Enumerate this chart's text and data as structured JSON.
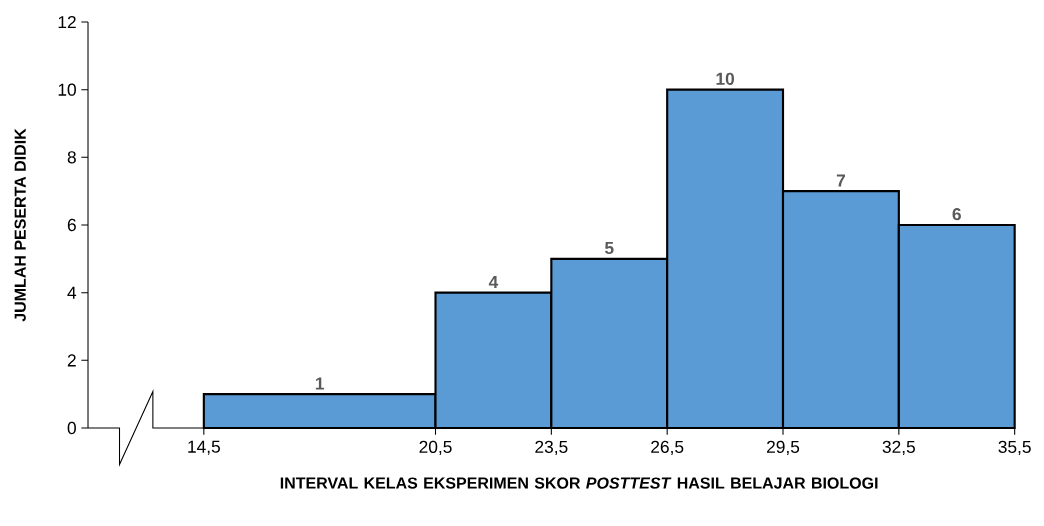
{
  "chart_data": {
    "type": "histogram",
    "xlabel": "INTERVAL KELAS EKSPERIMEN SKOR *POSTTEST* HASIL BELAJAR BIOLOGI",
    "ylabel": "JUMLAH PESERTA DIDIK",
    "bins": [
      14.5,
      20.5,
      23.5,
      26.5,
      29.5,
      32.5,
      35.5
    ],
    "values": [
      1,
      4,
      5,
      10,
      7,
      6
    ],
    "color": "#5b9bd5",
    "data_labels": true,
    "xlim": [
      11.5,
      35.5
    ],
    "ylim": [
      0,
      12
    ],
    "yticks": [
      0,
      2,
      4,
      6,
      8,
      10,
      12
    ],
    "xticks": [
      {
        "value": 14.5,
        "label": "14,5"
      },
      {
        "value": 20.5,
        "label": "20,5"
      },
      {
        "value": 23.5,
        "label": "23,5"
      },
      {
        "value": 26.5,
        "label": "26,5"
      },
      {
        "value": 29.5,
        "label": "29,5"
      },
      {
        "value": 32.5,
        "label": "32,5"
      },
      {
        "value": 35.5,
        "label": "35,5"
      }
    ],
    "grid": false
  }
}
